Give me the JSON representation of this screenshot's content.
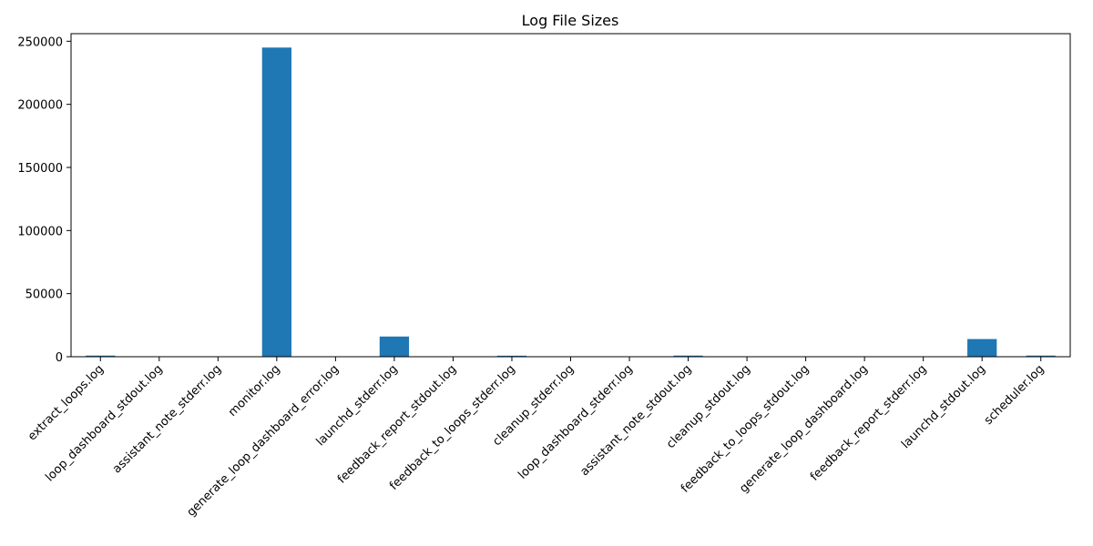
{
  "chart_data": {
    "type": "bar",
    "title": "Log File Sizes",
    "xlabel": "",
    "ylabel": "",
    "categories": [
      "extract_loops.log",
      "loop_dashboard_stdout.log",
      "assistant_note_stderr.log",
      "monitor.log",
      "generate_loop_dashboard_error.log",
      "launchd_stderr.log",
      "feedback_report_stdout.log",
      "feedback_to_loops_stderr.log",
      "cleanup_stderr.log",
      "loop_dashboard_stderr.log",
      "assistant_note_stdout.log",
      "cleanup_stdout.log",
      "feedback_to_loops_stdout.log",
      "generate_loop_dashboard.log",
      "feedback_report_stderr.log",
      "launchd_stdout.log",
      "scheduler.log"
    ],
    "values": [
      900,
      0,
      0,
      245000,
      0,
      16000,
      0,
      800,
      0,
      0,
      900,
      0,
      0,
      0,
      0,
      14000,
      900
    ],
    "ylim": [
      0,
      256000
    ],
    "yticks": [
      0,
      50000,
      100000,
      150000,
      200000,
      250000
    ],
    "ytick_labels": [
      "0",
      "50000",
      "100000",
      "150000",
      "200000",
      "250000"
    ],
    "bar_color": "#1f77b4",
    "x_tick_rotation_deg": 45,
    "grid": false,
    "legend": "none"
  }
}
